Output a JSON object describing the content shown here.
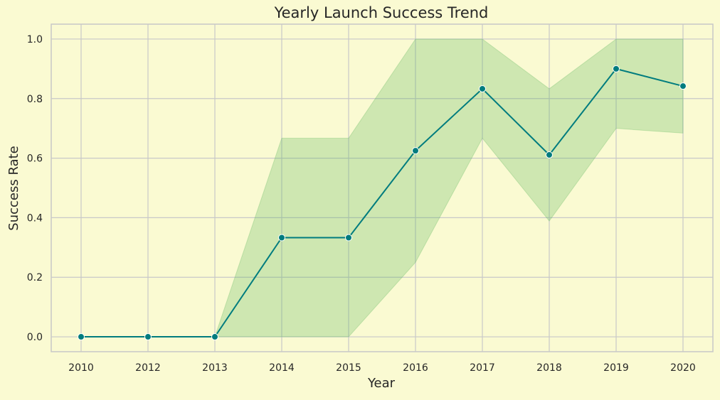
{
  "chart_data": {
    "type": "line",
    "title": "Yearly Launch Success Trend",
    "xlabel": "Year",
    "ylabel": "Success Rate",
    "categories": [
      "2010",
      "2012",
      "2013",
      "2014",
      "2015",
      "2016",
      "2017",
      "2018",
      "2019",
      "2020"
    ],
    "series": [
      {
        "values": [
          0.0,
          0.0,
          0.0,
          0.333,
          0.333,
          0.625,
          0.833,
          0.611,
          0.9,
          0.842
        ],
        "ci_lower": [
          0.0,
          0.0,
          0.0,
          0.0,
          0.0,
          0.25,
          0.667,
          0.389,
          0.7,
          0.684
        ],
        "ci_upper": [
          0.0,
          0.0,
          0.0,
          0.667,
          0.667,
          1.0,
          1.0,
          0.833,
          1.0,
          1.0
        ],
        "color": "#007c7e",
        "band_color": "#4caf50",
        "marker": "circle"
      }
    ],
    "yticks": [
      "0.0",
      "0.2",
      "0.4",
      "0.6",
      "0.8",
      "1.0"
    ],
    "ylim": [
      -0.05,
      1.05
    ],
    "grid": true,
    "legend": "none",
    "background_color": "#fafad2",
    "plot_background_color": "#fafad2",
    "grid_color": "#c8c8c8"
  }
}
